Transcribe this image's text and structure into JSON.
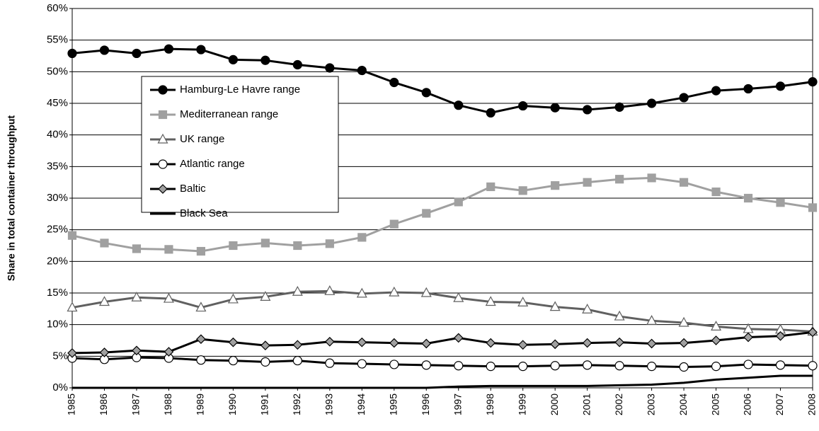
{
  "chart_data": {
    "type": "line",
    "y_label": "Share in total container throughput",
    "categories": [
      "1985",
      "1986",
      "1987",
      "1988",
      "1989",
      "1990",
      "1991",
      "1992",
      "1993",
      "1994",
      "1995",
      "1996",
      "1997",
      "1998",
      "1999",
      "2000",
      "2001",
      "2002",
      "2003",
      "2004",
      "2005",
      "2006",
      "2007",
      "2008"
    ],
    "series": [
      {
        "name": "Hamburg-Le Havre range",
        "color": "#000000",
        "marker": "circle",
        "marker_fill": "#000000",
        "values": [
          52.9,
          53.4,
          52.9,
          53.6,
          53.5,
          51.9,
          51.8,
          51.1,
          50.6,
          50.2,
          48.3,
          46.7,
          44.7,
          43.5,
          44.6,
          44.3,
          44.0,
          44.4,
          45.0,
          45.9,
          47.0,
          47.3,
          47.7,
          48.4
        ]
      },
      {
        "name": "Mediterranean range",
        "color": "#a0a0a0",
        "marker": "square",
        "marker_fill": "#a0a0a0",
        "values": [
          24.1,
          22.9,
          22.0,
          21.9,
          21.6,
          22.5,
          22.9,
          22.5,
          22.8,
          23.8,
          25.9,
          27.6,
          29.4,
          31.8,
          31.2,
          32.0,
          32.5,
          33.0,
          33.2,
          32.5,
          31.0,
          30.0,
          29.3,
          28.5
        ]
      },
      {
        "name": "UK range",
        "color": "#606060",
        "marker": "triangle",
        "marker_fill": "#ffffff",
        "values": [
          12.7,
          13.6,
          14.3,
          14.1,
          12.7,
          14.0,
          14.4,
          15.2,
          15.3,
          14.9,
          15.1,
          15.0,
          14.2,
          13.6,
          13.5,
          12.8,
          12.4,
          11.3,
          10.6,
          10.3,
          9.7,
          9.3,
          9.2,
          8.9
        ]
      },
      {
        "name": "Atlantic range",
        "color": "#000000",
        "marker": "circle",
        "marker_fill": "#ffffff",
        "values": [
          4.7,
          4.5,
          4.8,
          4.7,
          4.4,
          4.3,
          4.1,
          4.3,
          3.9,
          3.8,
          3.7,
          3.6,
          3.5,
          3.4,
          3.4,
          3.5,
          3.6,
          3.5,
          3.4,
          3.3,
          3.4,
          3.7,
          3.6,
          3.5
        ]
      },
      {
        "name": "Baltic",
        "color": "#000000",
        "marker": "diamond",
        "marker_fill": "#a0a0a0",
        "values": [
          5.5,
          5.6,
          5.9,
          5.7,
          7.7,
          7.2,
          6.7,
          6.8,
          7.3,
          7.2,
          7.1,
          7.0,
          7.9,
          7.1,
          6.8,
          6.9,
          7.1,
          7.2,
          7.0,
          7.1,
          7.5,
          8.0,
          8.2,
          8.8
        ]
      },
      {
        "name": "Black Sea",
        "color": "#000000",
        "marker": "none",
        "marker_fill": "#000000",
        "values": [
          0,
          0,
          0,
          0,
          0,
          0,
          0,
          0,
          0,
          0,
          0,
          0,
          0.2,
          0.3,
          0.3,
          0.3,
          0.3,
          0.4,
          0.5,
          0.8,
          1.3,
          1.6,
          1.9,
          1.9
        ]
      }
    ],
    "ylim": [
      0,
      60
    ],
    "yticks": [
      {
        "value": 0,
        "label": "0%"
      },
      {
        "value": 5,
        "label": "5%"
      },
      {
        "value": 10,
        "label": "10%"
      },
      {
        "value": 15,
        "label": "15%"
      },
      {
        "value": 20,
        "label": "20%"
      },
      {
        "value": 25,
        "label": "25%"
      },
      {
        "value": 30,
        "label": "30%"
      },
      {
        "value": 35,
        "label": "35%"
      },
      {
        "value": 40,
        "label": "40%"
      },
      {
        "value": 45,
        "label": "45%"
      },
      {
        "value": 50,
        "label": "50%"
      },
      {
        "value": 55,
        "label": "55%"
      },
      {
        "value": 60,
        "label": "60%"
      }
    ],
    "grid": true,
    "legend": "upper left"
  }
}
